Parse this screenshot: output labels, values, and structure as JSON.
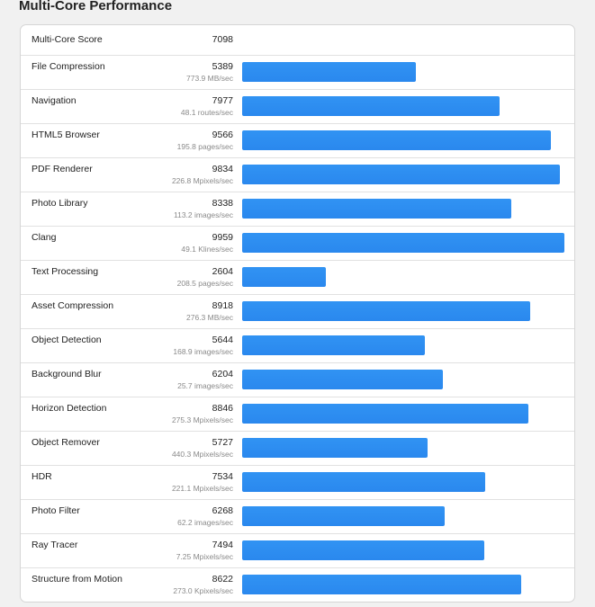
{
  "header": {
    "title": "Multi-Core Performance"
  },
  "summary": {
    "label": "Multi-Core Score",
    "score": "7098"
  },
  "chart_data": {
    "type": "bar",
    "orientation": "horizontal",
    "xlim": [
      0,
      10000
    ],
    "categories": [
      "File Compression",
      "Navigation",
      "HTML5 Browser",
      "PDF Renderer",
      "Photo Library",
      "Clang",
      "Text Processing",
      "Asset Compression",
      "Object Detection",
      "Background Blur",
      "Horizon Detection",
      "Object Remover",
      "HDR",
      "Photo Filter",
      "Ray Tracer",
      "Structure from Motion"
    ],
    "values": [
      5389,
      7977,
      9566,
      9834,
      8338,
      9959,
      2604,
      8918,
      5644,
      6204,
      8846,
      5727,
      7534,
      6268,
      7494,
      8622
    ],
    "rates": [
      "773.9 MB/sec",
      "48.1 routes/sec",
      "195.8 pages/sec",
      "226.8 Mpixels/sec",
      "113.2 images/sec",
      "49.1 Klines/sec",
      "208.5 pages/sec",
      "276.3 MB/sec",
      "168.9 images/sec",
      "25.7 images/sec",
      "275.3 Mpixels/sec",
      "440.3 Mpixels/sec",
      "221.1 Mpixels/sec",
      "62.2 images/sec",
      "7.25 Mpixels/sec",
      "273.0 Kpixels/sec"
    ],
    "bar_color": "#2a88ee",
    "grid": false
  }
}
